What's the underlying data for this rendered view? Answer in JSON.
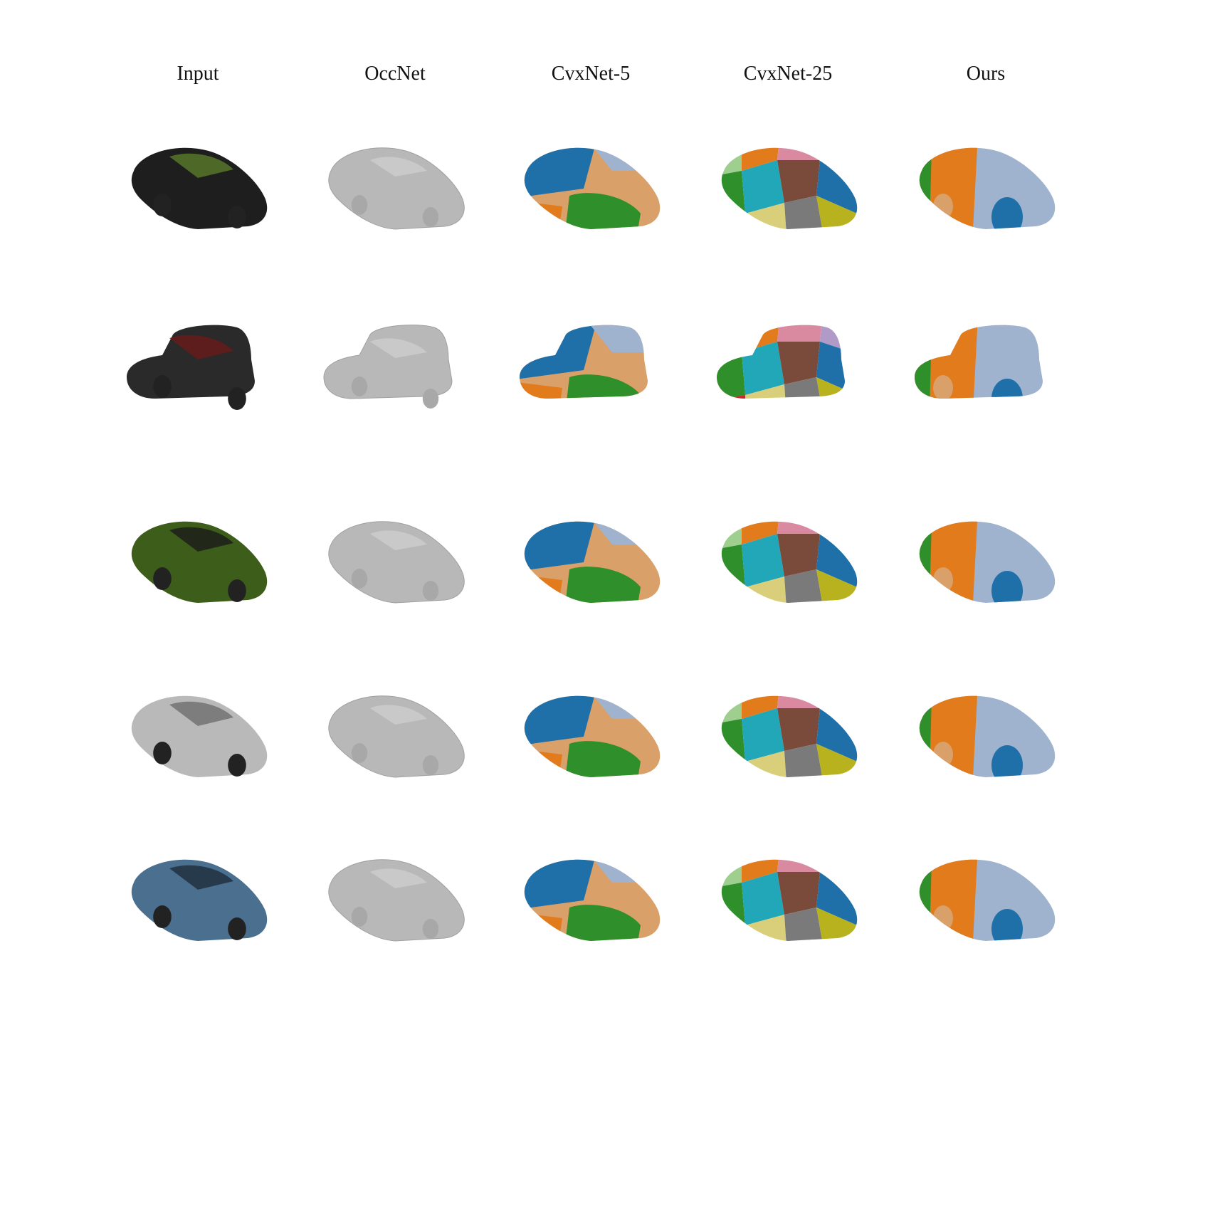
{
  "figure": {
    "columns": [
      {
        "key": "input",
        "label": "Input"
      },
      {
        "key": "occnet",
        "label": "OccNet"
      },
      {
        "key": "cvxnet5",
        "label": "CvxNet-5"
      },
      {
        "key": "cvxnet25",
        "label": "CvxNet-25"
      },
      {
        "key": "ours",
        "label": "Ours"
      }
    ],
    "rows": [
      {
        "shape": "sports-car",
        "input_color": "#1e1e1e",
        "input_accent": "#5a7a2a"
      },
      {
        "shape": "suv",
        "input_color": "#2a2a2a",
        "input_accent": "#6a1a1a"
      },
      {
        "shape": "coupe",
        "input_color": "#3d5e1a",
        "input_accent": "#1a1a1a"
      },
      {
        "shape": "hatchback",
        "input_color": "#b9b9b9",
        "input_accent": "#6e6e6e"
      },
      {
        "shape": "sedan",
        "input_color": "#4a6f8f",
        "input_accent": "#1e2d3a"
      }
    ],
    "palette": {
      "occnet_gray": "#b8b8b8",
      "blue": "#1f6fa8",
      "green": "#2f8f2a",
      "tan": "#d9a06a",
      "lightblue": "#9fb3cf",
      "orange": "#e27b1c",
      "pink": "#d98aa0",
      "cyan": "#22a7b8",
      "red": "#c8282e",
      "brown": "#7a4a3a",
      "darkgray": "#7a7a7a",
      "khaki": "#d9cf7a",
      "lightgreen": "#9ecf8f",
      "violet": "#b09ac8",
      "olive": "#b8b21e"
    }
  }
}
